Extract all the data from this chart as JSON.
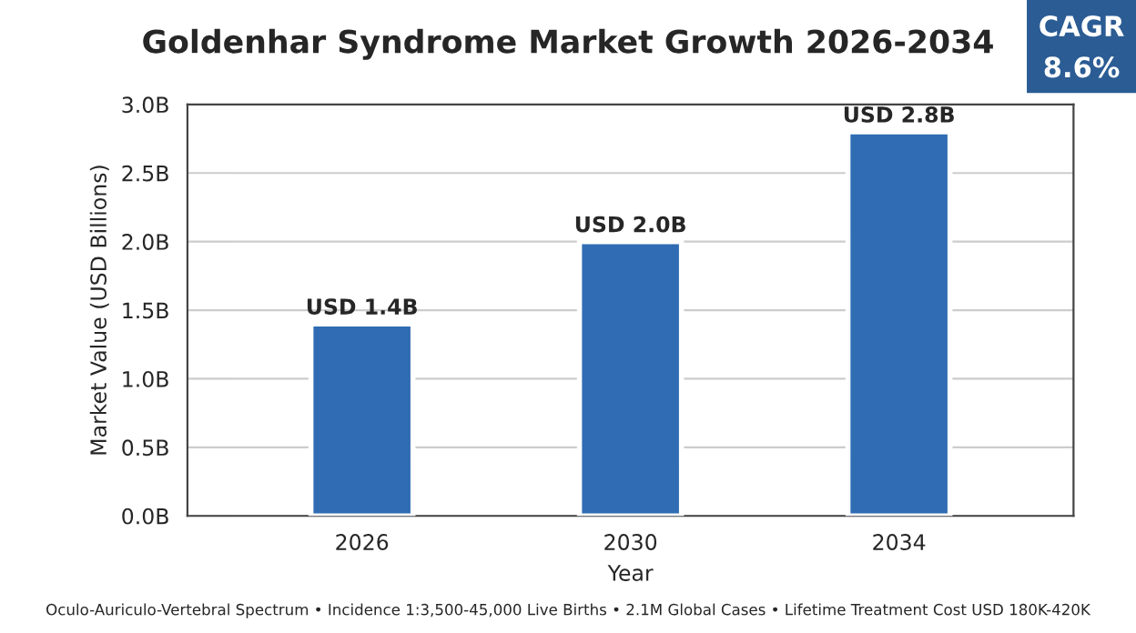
{
  "chart_data": {
    "type": "bar",
    "title": "Goldenhar Syndrome Market Growth 2026-2034",
    "xlabel": "Year",
    "ylabel": "Market Value (USD Billions)",
    "categories": [
      "2026",
      "2030",
      "2034"
    ],
    "values": [
      1.4,
      2.0,
      2.8
    ],
    "value_labels": [
      "USD 1.4B",
      "USD 2.0B",
      "USD 2.8B"
    ],
    "color": "#2f6cb3",
    "ylim": [
      0,
      3.0
    ],
    "yticks": [
      {
        "value": 0,
        "label": "0.0B"
      },
      {
        "value": 0.5,
        "label": "0.5B"
      },
      {
        "value": 1.0,
        "label": "1.0B"
      },
      {
        "value": 1.5,
        "label": "1.5B"
      },
      {
        "value": 2.0,
        "label": "2.0B"
      },
      {
        "value": 2.5,
        "label": "2.5B"
      },
      {
        "value": 3.0,
        "label": "3.0B"
      }
    ],
    "grid": "y",
    "annotations": [
      "CAGR",
      "8.6%",
      "Oculo-Auriculo-Vertebral Spectrum • Incidence 1:3,500-45,000 Live Births • 2.1M Global Cases • Lifetime Treatment Cost USD 180K-420K"
    ]
  }
}
